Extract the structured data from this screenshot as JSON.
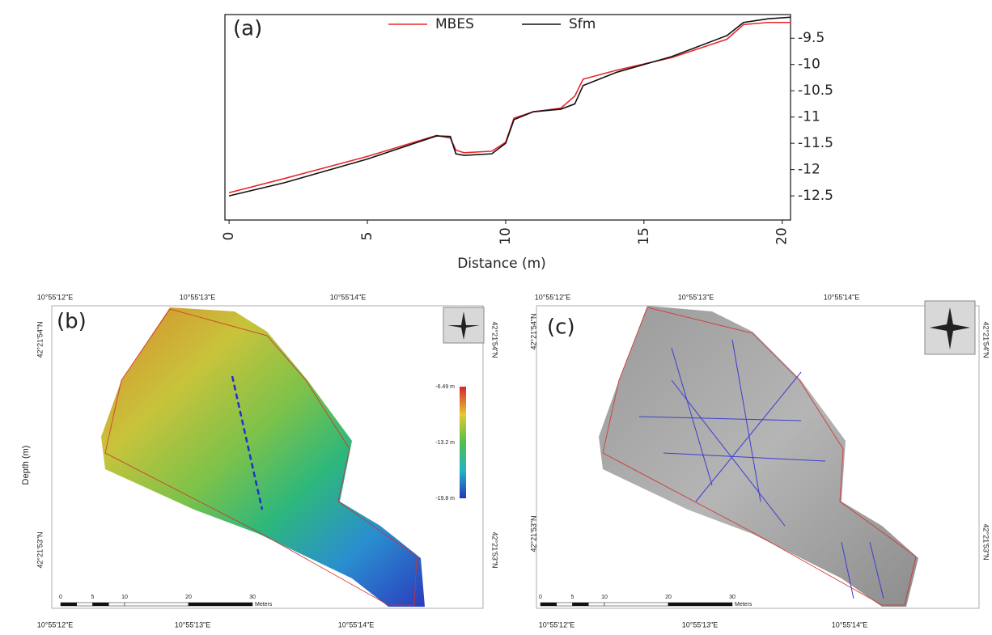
{
  "chart_data": {
    "type": "line",
    "annotation": "(a)",
    "xlabel": "Distance (m)",
    "ylabel": "Depth (m)",
    "x": [
      0,
      2,
      5,
      7.5,
      8.0,
      8.2,
      8.5,
      9.5,
      10.0,
      10.3,
      11.0,
      12.0,
      12.5,
      12.8,
      14,
      16,
      18,
      18.6,
      19.5,
      20.3
    ],
    "series": [
      {
        "name": "MBES",
        "color": "#e8262d",
        "values": [
          -12.44,
          -12.17,
          -11.75,
          -11.35,
          -11.4,
          -11.63,
          -11.68,
          -11.65,
          -11.48,
          -11.02,
          -10.9,
          -10.83,
          -10.6,
          -10.28,
          -10.11,
          -9.87,
          -9.52,
          -9.24,
          -9.2,
          -9.2
        ]
      },
      {
        "name": "Sfm",
        "color": "#111111",
        "values": [
          -12.5,
          -12.25,
          -11.8,
          -11.36,
          -11.37,
          -11.7,
          -11.73,
          -11.7,
          -11.5,
          -11.05,
          -10.9,
          -10.85,
          -10.75,
          -10.4,
          -10.15,
          -9.85,
          -9.45,
          -9.2,
          -9.13,
          -9.1
        ]
      }
    ],
    "xlim": [
      -0.15,
      20.3
    ],
    "xticks": [
      0,
      5,
      10,
      15,
      20
    ],
    "ylim": [
      -12.96,
      -9.05
    ],
    "yticks": [
      -9.5,
      -10,
      -10.5,
      -11,
      -11.5,
      -12,
      -12.5
    ],
    "yaxis_side": "right",
    "legend": "top"
  },
  "maps": [
    {
      "panel": "(b)",
      "lon_top": [
        "10°55'12\"E",
        "10°55'13\"E",
        "10°55'14\"E"
      ],
      "lon_bottom": [
        "10°55'12\"E",
        "10°55'13\"E",
        "10°55'14\"E"
      ],
      "lat_left": [
        "42°21'54\"N",
        "42°21'53\"N"
      ],
      "lat_right": [
        "42°21'54\"N",
        "42°21'53\"N"
      ],
      "colorbar": [
        "-6.49 m",
        "-13.2 m",
        "-19.8 m"
      ],
      "scale": [
        "0",
        "5",
        "10",
        "20",
        "30"
      ],
      "scale_unit": "Meters"
    },
    {
      "panel": "(c)",
      "lon_top": [
        "10°55'12\"E",
        "10°55'13\"E",
        "10°55'14\"E"
      ],
      "lon_bottom": [
        "10°55'12\"E",
        "10°55'13\"E",
        "10°55'14\"E"
      ],
      "lat_left": [
        "42°21'54\"N",
        "42°21'53\"N"
      ],
      "lat_right": [
        "42°21'54\"N",
        "42°21'53\"N"
      ],
      "scale": [
        "0",
        "5",
        "10",
        "20",
        "30"
      ],
      "scale_unit": "Meters"
    }
  ]
}
